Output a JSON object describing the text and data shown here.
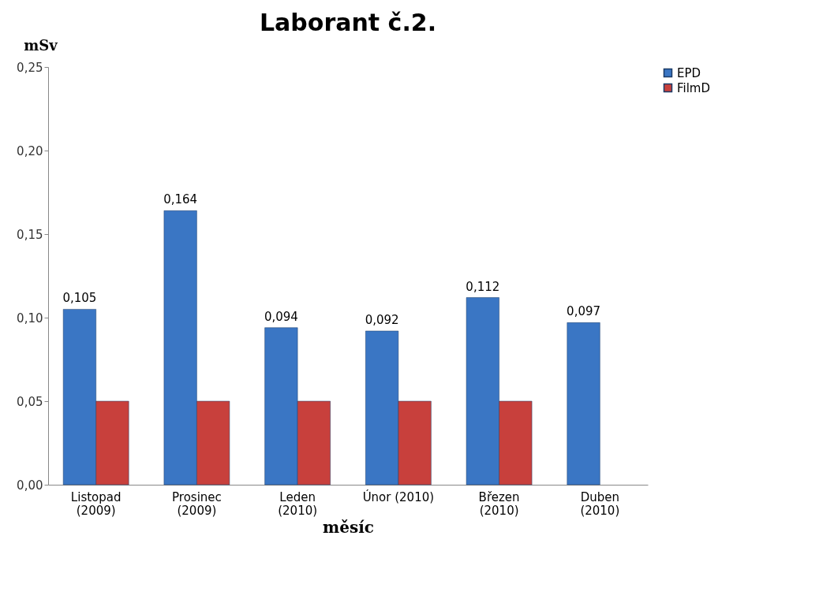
{
  "chart_data": {
    "type": "bar",
    "title": "Laborant č.2.",
    "xlabel": "měsíc",
    "ylabel": "mSv",
    "categories": [
      "Listopad\n(2009)",
      "Prosinec\n(2009)",
      "Leden\n(2010)",
      "Únor (2010)",
      "Březen\n(2010)",
      "Duben\n(2010)"
    ],
    "series": [
      {
        "name": "EPD",
        "color": "#3a76c4",
        "values": [
          0.105,
          0.164,
          0.094,
          0.092,
          0.112,
          0.097
        ],
        "value_labels": [
          "0,105",
          "0,164",
          "0,094",
          "0,092",
          "0,112",
          "0,097"
        ]
      },
      {
        "name": "FilmD",
        "color": "#c8403c",
        "values": [
          0.05,
          0.05,
          0.05,
          0.05,
          0.05,
          null
        ]
      }
    ],
    "ylim": [
      0,
      0.25
    ],
    "yticks": [
      {
        "value": 0,
        "label": "0,00"
      },
      {
        "value": 0.05,
        "label": "0,05"
      },
      {
        "value": 0.1,
        "label": "0,10"
      },
      {
        "value": 0.15,
        "label": "0,15"
      },
      {
        "value": 0.2,
        "label": "0,20"
      },
      {
        "value": 0.25,
        "label": "0,25"
      }
    ],
    "grid": false,
    "legend": "right"
  }
}
